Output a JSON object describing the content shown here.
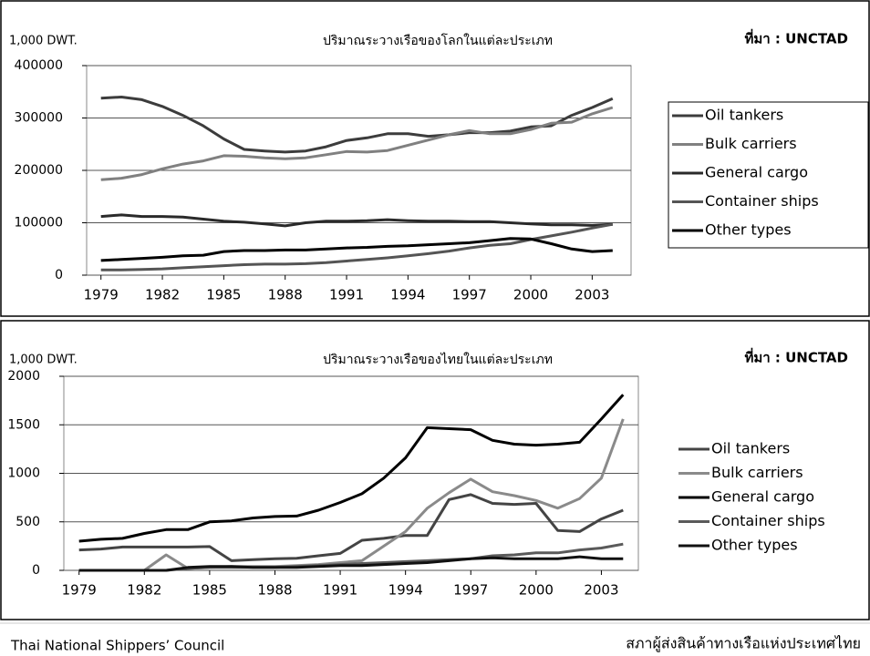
{
  "chart_data": [
    {
      "type": "line",
      "title": "ปริมาณระวางเรือของโลกในแต่ละประเภท",
      "y_label": "1,000 DWT.",
      "source": "ที่มา : UNCTAD",
      "x": [
        1979,
        1980,
        1981,
        1982,
        1983,
        1984,
        1985,
        1986,
        1987,
        1988,
        1989,
        1990,
        1991,
        1992,
        1993,
        1994,
        1995,
        1996,
        1997,
        1998,
        1999,
        2000,
        2001,
        2002,
        2003,
        2004
      ],
      "xlim": [
        1978.3,
        2004.9
      ],
      "xticks": [
        1979,
        1982,
        1985,
        1988,
        1991,
        1994,
        1997,
        2000,
        2003
      ],
      "ylim": [
        0,
        400000
      ],
      "yticks": [
        0,
        100000,
        200000,
        300000,
        400000
      ],
      "grid": true,
      "legend": "right",
      "legend_box": true,
      "series": [
        {
          "name": "Oil tankers",
          "color": "#3c3c3c",
          "values": [
            338000,
            340000,
            335000,
            322000,
            305000,
            285000,
            260000,
            240000,
            237000,
            235000,
            237000,
            245000,
            257000,
            262000,
            270000,
            270000,
            265000,
            268000,
            272000,
            272000,
            275000,
            283000,
            285000,
            305000,
            320000,
            337000
          ]
        },
        {
          "name": "Bulk carriers",
          "color": "#808080",
          "values": [
            182000,
            185000,
            192000,
            203000,
            212000,
            218000,
            228000,
            227000,
            224000,
            222000,
            224000,
            230000,
            236000,
            235000,
            238000,
            248000,
            258000,
            268000,
            276000,
            270000,
            270000,
            278000,
            290000,
            292000,
            308000,
            320000
          ]
        },
        {
          "name": "General cargo",
          "color": "#2a2a2a",
          "values": [
            112000,
            115000,
            112000,
            112000,
            111000,
            107000,
            103000,
            101000,
            98000,
            94000,
            100000,
            103000,
            103000,
            104000,
            106000,
            104000,
            103000,
            103000,
            102000,
            102000,
            100000,
            98000,
            96000,
            96000,
            95000,
            97000
          ]
        },
        {
          "name": "Container ships",
          "color": "#555555",
          "values": [
            10000,
            10000,
            11000,
            12000,
            14000,
            16000,
            18000,
            20000,
            21000,
            21000,
            22000,
            24000,
            27000,
            30000,
            33000,
            37000,
            41000,
            46000,
            52000,
            57000,
            60000,
            68000,
            75000,
            82000,
            90000,
            97000
          ]
        },
        {
          "name": "Other types",
          "color": "#000000",
          "values": [
            28000,
            30000,
            32000,
            34000,
            37000,
            38000,
            45000,
            47000,
            47000,
            48000,
            48000,
            50000,
            52000,
            53000,
            55000,
            56000,
            58000,
            60000,
            62000,
            66000,
            70000,
            69000,
            60000,
            50000,
            45000,
            47000
          ]
        }
      ]
    },
    {
      "type": "line",
      "title": "ปริมาณระวางเรือของไทยในแต่ละประเภท",
      "y_label": "1,000 DWT.",
      "source": "ที่มา : UNCTAD",
      "x": [
        1979,
        1980,
        1981,
        1982,
        1983,
        1984,
        1985,
        1986,
        1987,
        1988,
        1989,
        1990,
        1991,
        1992,
        1993,
        1994,
        1995,
        1996,
        1997,
        1998,
        1999,
        2000,
        2001,
        2002,
        2003,
        2004
      ],
      "xlim": [
        1978.3,
        2004.7
      ],
      "xticks": [
        1979,
        1982,
        1985,
        1988,
        1991,
        1994,
        1997,
        2000,
        2003
      ],
      "ylim": [
        0,
        2000
      ],
      "yticks": [
        0,
        500,
        1000,
        1500,
        2000
      ],
      "grid": true,
      "legend": "right",
      "legend_box": false,
      "series": [
        {
          "name": "Oil tankers",
          "color": "#444444",
          "values": [
            210,
            220,
            240,
            240,
            240,
            240,
            245,
            100,
            110,
            120,
            125,
            150,
            175,
            310,
            330,
            360,
            360,
            730,
            780,
            690,
            680,
            690,
            410,
            400,
            530,
            620
          ]
        },
        {
          "name": "Bulk carriers",
          "color": "#8a8a8a",
          "values": [
            0,
            0,
            0,
            0,
            160,
            20,
            30,
            40,
            40,
            40,
            50,
            60,
            80,
            100,
            250,
            400,
            640,
            800,
            940,
            810,
            770,
            720,
            640,
            740,
            950,
            1560
          ]
        },
        {
          "name": "General cargo",
          "color": "#000000",
          "values": [
            300,
            320,
            330,
            380,
            420,
            420,
            500,
            510,
            540,
            555,
            560,
            620,
            700,
            790,
            950,
            1160,
            1470,
            1460,
            1450,
            1340,
            1300,
            1290,
            1300,
            1320,
            1560,
            1810
          ]
        },
        {
          "name": "Container ships",
          "color": "#5a5a5a",
          "values": [
            0,
            0,
            0,
            0,
            0,
            20,
            30,
            30,
            30,
            30,
            40,
            50,
            60,
            70,
            80,
            90,
            100,
            110,
            120,
            150,
            160,
            180,
            180,
            210,
            230,
            270
          ]
        },
        {
          "name": "Other types",
          "color": "#111111",
          "values": [
            0,
            0,
            0,
            0,
            0,
            30,
            40,
            40,
            30,
            30,
            30,
            40,
            50,
            50,
            60,
            70,
            80,
            100,
            120,
            130,
            120,
            120,
            120,
            140,
            120,
            120
          ]
        }
      ]
    }
  ],
  "footer": {
    "left": "Thai National Shippers’ Council",
    "right": "สภาผู้ส่งสินค้าทางเรือแห่งประเทศไทย"
  }
}
